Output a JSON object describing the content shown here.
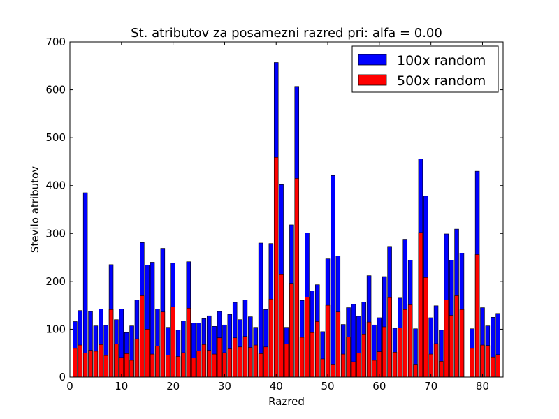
{
  "chart_data": {
    "type": "bar",
    "title": "St. atributov za posamezni razred pri: alfa = 0.00",
    "xlabel": "Razred",
    "ylabel": "Stevilo atributov",
    "xlim": [
      0,
      84
    ],
    "ylim": [
      0,
      700
    ],
    "xticks": [
      0,
      10,
      20,
      30,
      40,
      50,
      60,
      70,
      80
    ],
    "yticks": [
      0,
      100,
      200,
      300,
      400,
      500,
      600,
      700
    ],
    "grid": false,
    "legend_position": "top-right",
    "x": [
      1,
      2,
      3,
      4,
      5,
      6,
      7,
      8,
      9,
      10,
      11,
      12,
      13,
      14,
      15,
      16,
      17,
      18,
      19,
      20,
      21,
      22,
      23,
      24,
      25,
      26,
      27,
      28,
      29,
      30,
      31,
      32,
      33,
      34,
      35,
      36,
      37,
      38,
      39,
      40,
      41,
      42,
      43,
      44,
      45,
      46,
      47,
      48,
      49,
      50,
      51,
      52,
      53,
      54,
      55,
      56,
      57,
      58,
      59,
      60,
      61,
      62,
      63,
      64,
      65,
      66,
      67,
      68,
      69,
      70,
      71,
      72,
      73,
      74,
      75,
      76,
      78,
      79,
      80,
      81,
      82,
      83
    ],
    "series": [
      {
        "name": "100x random",
        "color": "#0000ff",
        "values": [
          116,
          139,
          385,
          137,
          107,
          142,
          108,
          235,
          120,
          142,
          93,
          107,
          161,
          281,
          234,
          240,
          142,
          269,
          104,
          238,
          98,
          117,
          241,
          113,
          113,
          122,
          128,
          106,
          137,
          109,
          131,
          156,
          120,
          161,
          126,
          104,
          280,
          141,
          279,
          657,
          402,
          104,
          318,
          607,
          160,
          301,
          180,
          193,
          95,
          247,
          421,
          253,
          110,
          145,
          152,
          127,
          157,
          212,
          109,
          124,
          210,
          273,
          102,
          165,
          288,
          244,
          101,
          456,
          378,
          124,
          149,
          98,
          299,
          244,
          309,
          259,
          101,
          430,
          145,
          107,
          125,
          133
        ]
      },
      {
        "name": "500x random",
        "color": "#ff0000",
        "values": [
          60,
          67,
          50,
          56,
          54,
          68,
          45,
          141,
          69,
          41,
          49,
          35,
          80,
          170,
          100,
          48,
          65,
          136,
          46,
          147,
          43,
          51,
          144,
          40,
          55,
          68,
          56,
          48,
          82,
          51,
          59,
          82,
          63,
          85,
          62,
          67,
          49,
          63,
          163,
          459,
          214,
          69,
          196,
          415,
          83,
          167,
          93,
          116,
          38,
          150,
          27,
          136,
          48,
          84,
          32,
          50,
          90,
          115,
          35,
          53,
          105,
          166,
          52,
          103,
          141,
          151,
          27,
          302,
          208,
          48,
          70,
          33,
          161,
          129,
          170,
          141,
          60,
          256,
          67,
          66,
          42,
          47
        ]
      }
    ]
  }
}
